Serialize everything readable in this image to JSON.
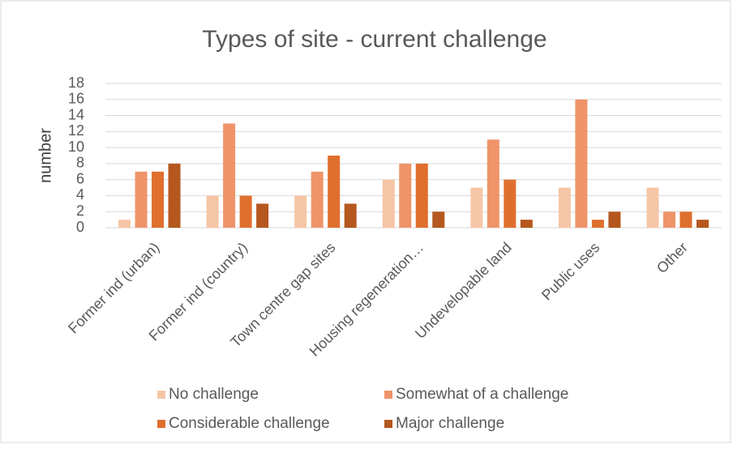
{
  "chart_data": {
    "type": "bar",
    "title": "Types of site - current challenge",
    "y_label": "number",
    "categories": [
      "Former ind (urban)",
      "Former ind (country)",
      "Town centre gap sites",
      "Housing regeneration…",
      "Undevelopable land",
      "Public uses",
      "Other"
    ],
    "series": [
      {
        "name": "No challenge",
        "color": "#f5c6a6",
        "values": [
          1,
          4,
          4,
          6,
          5,
          5,
          5
        ]
      },
      {
        "name": "Somewhat of a challenge",
        "color": "#ef9468",
        "values": [
          7,
          13,
          7,
          8,
          11,
          16,
          2
        ]
      },
      {
        "name": "Considerable challenge",
        "color": "#df6f2d",
        "values": [
          7,
          4,
          9,
          8,
          6,
          1,
          2
        ]
      },
      {
        "name": "Major challenge",
        "color": "#b5571e",
        "values": [
          8,
          3,
          3,
          2,
          1,
          2,
          1
        ]
      }
    ],
    "ylim": [
      0,
      18
    ],
    "yticks": [
      0,
      2,
      4,
      6,
      8,
      10,
      12,
      14,
      16,
      18
    ],
    "grid": true
  }
}
